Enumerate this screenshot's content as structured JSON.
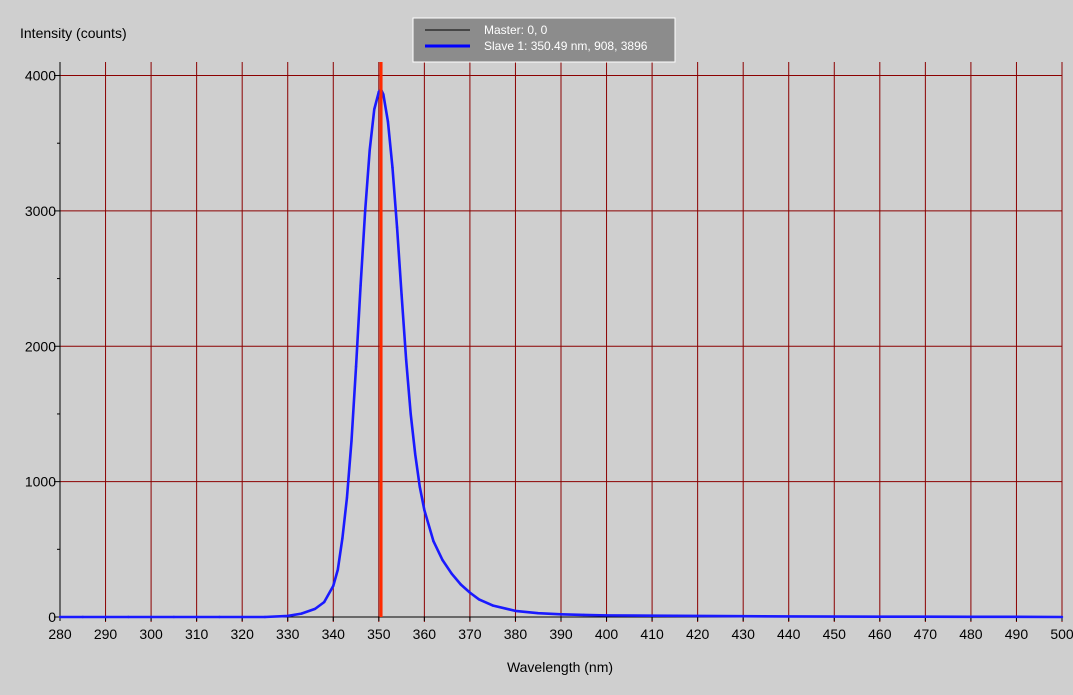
{
  "chart_data": {
    "type": "line",
    "ylabel": "Intensity (counts)",
    "xlabel": "Wavelength (nm)",
    "xlim": [
      280,
      500
    ],
    "ylim": [
      0,
      4100
    ],
    "x_ticks": [
      280,
      290,
      300,
      310,
      320,
      330,
      340,
      350,
      360,
      370,
      380,
      390,
      400,
      410,
      420,
      430,
      440,
      450,
      460,
      470,
      480,
      490,
      500
    ],
    "x_tick_labels": [
      "280",
      "290",
      "300",
      "310",
      "320",
      "330",
      "340",
      "350",
      "360",
      "370",
      "380",
      "390",
      "400",
      "410",
      "420",
      "430",
      "440",
      "450",
      "460",
      "470",
      "480",
      "490",
      "500"
    ],
    "y_ticks": [
      0,
      1000,
      2000,
      3000,
      4000
    ],
    "y_tick_labels": [
      "0",
      "1000",
      "2000",
      "3000",
      "4000"
    ],
    "y_minor_step": 500,
    "grid": true,
    "legend": {
      "placement": "top-center",
      "entries": [
        {
          "label": "Master: 0, 0",
          "color": "#000000"
        },
        {
          "label": "Slave 1: 350.49 nm, 908, 3896",
          "color": "#0000ff"
        }
      ]
    },
    "cursor": {
      "x": 350.49,
      "color": "#ff2a00"
    },
    "series": [
      {
        "name": "Slave 1",
        "color": "#1a1aff",
        "x": [
          280,
          285,
          290,
          295,
          300,
          305,
          310,
          315,
          320,
          325,
          330,
          333,
          336,
          338,
          340,
          341,
          342,
          343,
          344,
          345,
          346,
          347,
          348,
          349,
          350,
          350.49,
          351,
          352,
          353,
          354,
          355,
          356,
          357,
          358,
          359,
          360,
          362,
          364,
          366,
          368,
          370,
          372,
          375,
          380,
          385,
          390,
          395,
          400,
          410,
          420,
          430,
          440,
          450,
          460,
          470,
          480,
          490,
          500
        ],
        "y": [
          0,
          0,
          0,
          0,
          0,
          0,
          0,
          0,
          0,
          0,
          8,
          25,
          60,
          110,
          230,
          350,
          580,
          880,
          1300,
          1850,
          2450,
          3000,
          3450,
          3750,
          3880,
          3896,
          3860,
          3660,
          3320,
          2880,
          2380,
          1900,
          1500,
          1200,
          960,
          790,
          560,
          420,
          320,
          240,
          180,
          130,
          85,
          45,
          28,
          20,
          15,
          12,
          10,
          8,
          6,
          4,
          3,
          2,
          2,
          1,
          1,
          0
        ]
      }
    ]
  },
  "colors": {
    "background": "#cfcfcf",
    "grid": "#8b0000",
    "axis": "#000000",
    "legend_bg": "#8c8c8c"
  }
}
